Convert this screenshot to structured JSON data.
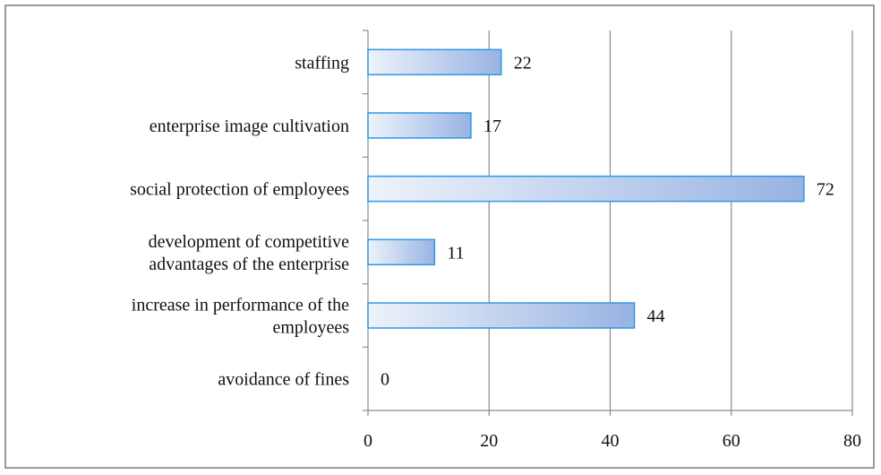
{
  "chart_data": {
    "type": "bar",
    "orientation": "horizontal",
    "categories": [
      [
        "staffing"
      ],
      [
        "enterprise image cultivation"
      ],
      [
        "social protection of employees"
      ],
      [
        "development of competitive",
        "advantages of the enterprise"
      ],
      [
        "increase in performance of the",
        "employees"
      ],
      [
        "avoidance of fines"
      ]
    ],
    "values": [
      22,
      17,
      72,
      11,
      44,
      0
    ],
    "value_labels": [
      "22",
      "17",
      "72",
      "11",
      "44",
      "0"
    ],
    "xticks": [
      "0",
      "20",
      "40",
      "60",
      "80"
    ],
    "xlim": [
      0,
      80
    ],
    "grid": true,
    "colors": {
      "bar_fill_start": "#eef3fb",
      "bar_fill_end": "#98b3e2",
      "bar_stroke": "#2f97e6",
      "grid": "#8c8c8c",
      "frame": "#7a7a7a"
    }
  }
}
